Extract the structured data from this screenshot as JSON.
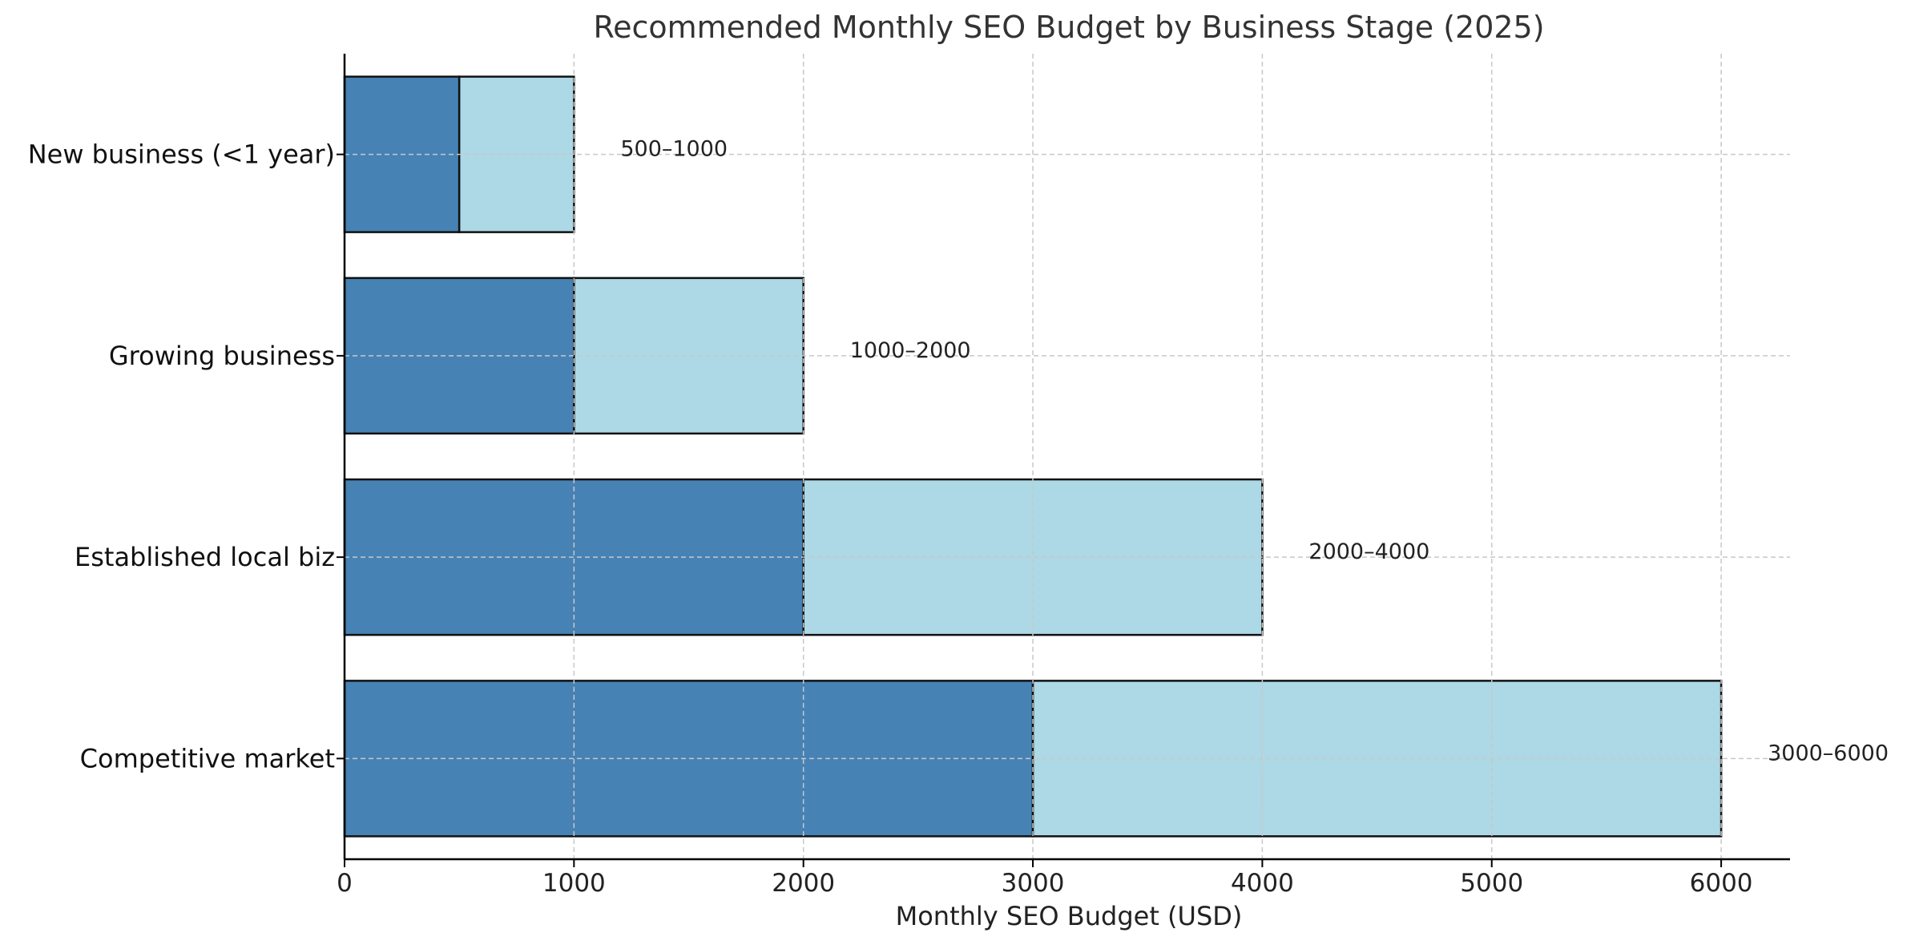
{
  "chart_data": {
    "type": "bar",
    "orientation": "horizontal",
    "stacked": true,
    "title": "Recommended Monthly SEO Budget by Business Stage (2025)",
    "xlabel": "Monthly SEO Budget (USD)",
    "ylabel": "",
    "xlim": [
      0,
      6300
    ],
    "xticks": [
      0,
      1000,
      2000,
      3000,
      4000,
      5000,
      6000
    ],
    "grid": true,
    "categories": [
      "New business (<1 year)",
      "Growing business",
      "Established local biz",
      "Competitive market"
    ],
    "series": [
      {
        "values": [
          500,
          1000,
          2000,
          3000
        ],
        "color": "#4682b4"
      },
      {
        "values": [
          500,
          1000,
          2000,
          3000
        ],
        "color": "#add8e6"
      }
    ],
    "range_labels": [
      "500–1000",
      "1000–2000",
      "2000–4000",
      "3000–6000"
    ]
  }
}
